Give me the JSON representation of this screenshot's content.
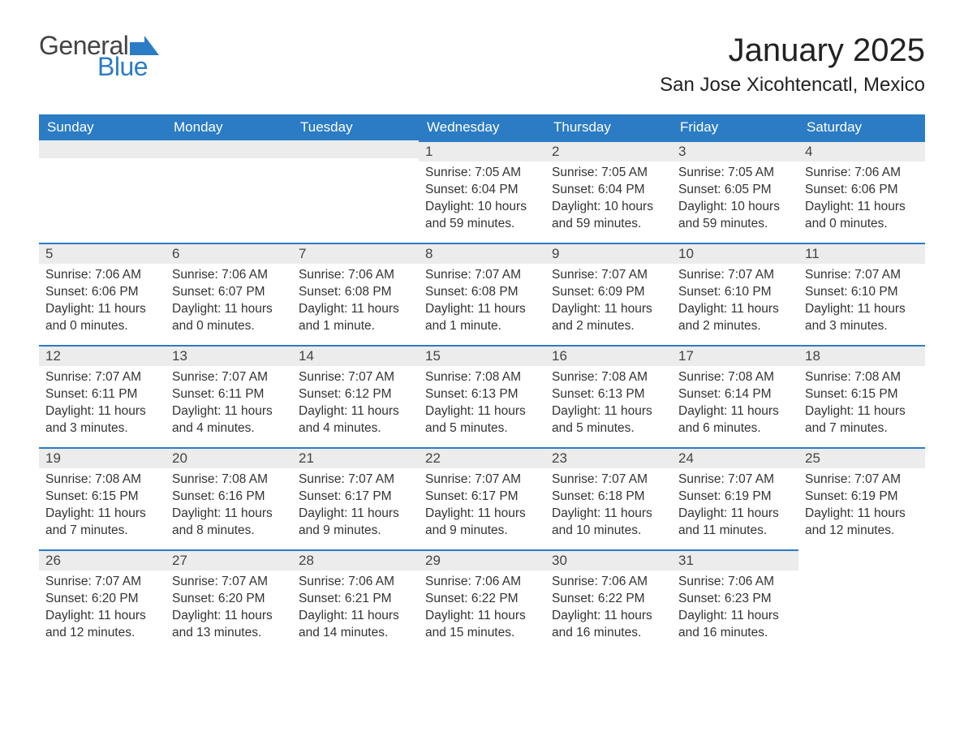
{
  "logo": {
    "text_general": "General",
    "text_blue": "Blue",
    "icon_color": "#2b7cc4"
  },
  "title": "January 2025",
  "location": "San Jose Xicohtencatl, Mexico",
  "colors": {
    "header_bg": "#2b7cc4",
    "header_text": "#ffffff",
    "daynum_bg": "#ececec",
    "daynum_border": "#2b7cc4",
    "body_text": "#333333",
    "page_bg": "#ffffff"
  },
  "typography": {
    "title_fontsize": 40,
    "location_fontsize": 24,
    "weekday_fontsize": 17,
    "daynum_fontsize": 17,
    "body_fontsize": 15.5
  },
  "weekdays": [
    "Sunday",
    "Monday",
    "Tuesday",
    "Wednesday",
    "Thursday",
    "Friday",
    "Saturday"
  ],
  "labels": {
    "sunrise": "Sunrise:",
    "sunset": "Sunset:",
    "daylight": "Daylight:"
  },
  "weeks": [
    [
      null,
      null,
      null,
      {
        "n": "1",
        "sunrise": "7:05 AM",
        "sunset": "6:04 PM",
        "daylight": "10 hours and 59 minutes."
      },
      {
        "n": "2",
        "sunrise": "7:05 AM",
        "sunset": "6:04 PM",
        "daylight": "10 hours and 59 minutes."
      },
      {
        "n": "3",
        "sunrise": "7:05 AM",
        "sunset": "6:05 PM",
        "daylight": "10 hours and 59 minutes."
      },
      {
        "n": "4",
        "sunrise": "7:06 AM",
        "sunset": "6:06 PM",
        "daylight": "11 hours and 0 minutes."
      }
    ],
    [
      {
        "n": "5",
        "sunrise": "7:06 AM",
        "sunset": "6:06 PM",
        "daylight": "11 hours and 0 minutes."
      },
      {
        "n": "6",
        "sunrise": "7:06 AM",
        "sunset": "6:07 PM",
        "daylight": "11 hours and 0 minutes."
      },
      {
        "n": "7",
        "sunrise": "7:06 AM",
        "sunset": "6:08 PM",
        "daylight": "11 hours and 1 minute."
      },
      {
        "n": "8",
        "sunrise": "7:07 AM",
        "sunset": "6:08 PM",
        "daylight": "11 hours and 1 minute."
      },
      {
        "n": "9",
        "sunrise": "7:07 AM",
        "sunset": "6:09 PM",
        "daylight": "11 hours and 2 minutes."
      },
      {
        "n": "10",
        "sunrise": "7:07 AM",
        "sunset": "6:10 PM",
        "daylight": "11 hours and 2 minutes."
      },
      {
        "n": "11",
        "sunrise": "7:07 AM",
        "sunset": "6:10 PM",
        "daylight": "11 hours and 3 minutes."
      }
    ],
    [
      {
        "n": "12",
        "sunrise": "7:07 AM",
        "sunset": "6:11 PM",
        "daylight": "11 hours and 3 minutes."
      },
      {
        "n": "13",
        "sunrise": "7:07 AM",
        "sunset": "6:11 PM",
        "daylight": "11 hours and 4 minutes."
      },
      {
        "n": "14",
        "sunrise": "7:07 AM",
        "sunset": "6:12 PM",
        "daylight": "11 hours and 4 minutes."
      },
      {
        "n": "15",
        "sunrise": "7:08 AM",
        "sunset": "6:13 PM",
        "daylight": "11 hours and 5 minutes."
      },
      {
        "n": "16",
        "sunrise": "7:08 AM",
        "sunset": "6:13 PM",
        "daylight": "11 hours and 5 minutes."
      },
      {
        "n": "17",
        "sunrise": "7:08 AM",
        "sunset": "6:14 PM",
        "daylight": "11 hours and 6 minutes."
      },
      {
        "n": "18",
        "sunrise": "7:08 AM",
        "sunset": "6:15 PM",
        "daylight": "11 hours and 7 minutes."
      }
    ],
    [
      {
        "n": "19",
        "sunrise": "7:08 AM",
        "sunset": "6:15 PM",
        "daylight": "11 hours and 7 minutes."
      },
      {
        "n": "20",
        "sunrise": "7:08 AM",
        "sunset": "6:16 PM",
        "daylight": "11 hours and 8 minutes."
      },
      {
        "n": "21",
        "sunrise": "7:07 AM",
        "sunset": "6:17 PM",
        "daylight": "11 hours and 9 minutes."
      },
      {
        "n": "22",
        "sunrise": "7:07 AM",
        "sunset": "6:17 PM",
        "daylight": "11 hours and 9 minutes."
      },
      {
        "n": "23",
        "sunrise": "7:07 AM",
        "sunset": "6:18 PM",
        "daylight": "11 hours and 10 minutes."
      },
      {
        "n": "24",
        "sunrise": "7:07 AM",
        "sunset": "6:19 PM",
        "daylight": "11 hours and 11 minutes."
      },
      {
        "n": "25",
        "sunrise": "7:07 AM",
        "sunset": "6:19 PM",
        "daylight": "11 hours and 12 minutes."
      }
    ],
    [
      {
        "n": "26",
        "sunrise": "7:07 AM",
        "sunset": "6:20 PM",
        "daylight": "11 hours and 12 minutes."
      },
      {
        "n": "27",
        "sunrise": "7:07 AM",
        "sunset": "6:20 PM",
        "daylight": "11 hours and 13 minutes."
      },
      {
        "n": "28",
        "sunrise": "7:06 AM",
        "sunset": "6:21 PM",
        "daylight": "11 hours and 14 minutes."
      },
      {
        "n": "29",
        "sunrise": "7:06 AM",
        "sunset": "6:22 PM",
        "daylight": "11 hours and 15 minutes."
      },
      {
        "n": "30",
        "sunrise": "7:06 AM",
        "sunset": "6:22 PM",
        "daylight": "11 hours and 16 minutes."
      },
      {
        "n": "31",
        "sunrise": "7:06 AM",
        "sunset": "6:23 PM",
        "daylight": "11 hours and 16 minutes."
      },
      null
    ]
  ]
}
